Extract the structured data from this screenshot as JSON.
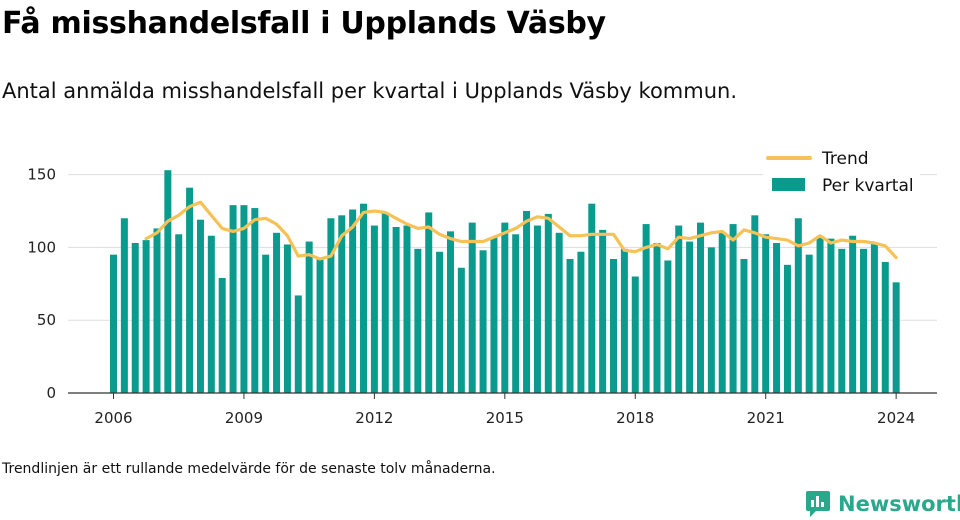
{
  "header": {
    "title": "Få misshandelsfall i Upplands Väsby",
    "subtitle": "Antal anmälda misshandelsfall per kvartal i Upplands Väsby kommun."
  },
  "footnote": "Trendlinjen är ett rullande medelvärde för de senaste tolv månaderna.",
  "brand": {
    "name": "Newsworthy",
    "icon": "bar-chart-logo-icon"
  },
  "colors": {
    "bars": "#0a9b8e",
    "trend": "#f5c257",
    "grid": "#dddddd",
    "axis": "#333333",
    "brand": "#2aa88c"
  },
  "chart_data": {
    "type": "bar",
    "x_start": "2006 Q1",
    "quarters_per_year": 4,
    "xticks": [
      "2006",
      "2009",
      "2012",
      "2015",
      "2018",
      "2021",
      "2024"
    ],
    "yticks": [
      "0",
      "50",
      "100",
      "150"
    ],
    "ylim": [
      0,
      160
    ],
    "grid": "horizontal",
    "legend_position": "top-right",
    "series": [
      {
        "name": "Per kvartal",
        "type": "bar",
        "values": [
          95,
          120,
          103,
          105,
          113,
          153,
          109,
          141,
          119,
          108,
          79,
          129,
          129,
          127,
          95,
          110,
          102,
          67,
          104,
          92,
          120,
          122,
          126,
          130,
          115,
          124,
          114,
          115,
          99,
          124,
          97,
          111,
          86,
          117,
          98,
          107,
          117,
          109,
          125,
          115,
          123,
          110,
          92,
          97,
          130,
          112,
          92,
          99,
          80,
          116,
          103,
          91,
          115,
          104,
          117,
          100,
          110,
          116,
          92,
          122,
          109,
          103,
          88,
          120,
          95,
          107,
          106,
          99,
          108,
          99,
          103,
          90,
          76
        ]
      },
      {
        "name": "Trend",
        "type": "line",
        "values": [
          null,
          null,
          null,
          106,
          110,
          118,
          122,
          128,
          131,
          122,
          113,
          111,
          113,
          119,
          120,
          116,
          108,
          94,
          95,
          92,
          94,
          108,
          114,
          124,
          125,
          124,
          120,
          116,
          113,
          114,
          109,
          106,
          104,
          104,
          104,
          107,
          110,
          113,
          118,
          121,
          120,
          114,
          108,
          108,
          109,
          109,
          109,
          98,
          97,
          100,
          102,
          99,
          107,
          106,
          108,
          110,
          111,
          105,
          112,
          110,
          107,
          106,
          105,
          101,
          103,
          108,
          103,
          105,
          104,
          104,
          103,
          101,
          93
        ]
      }
    ]
  }
}
